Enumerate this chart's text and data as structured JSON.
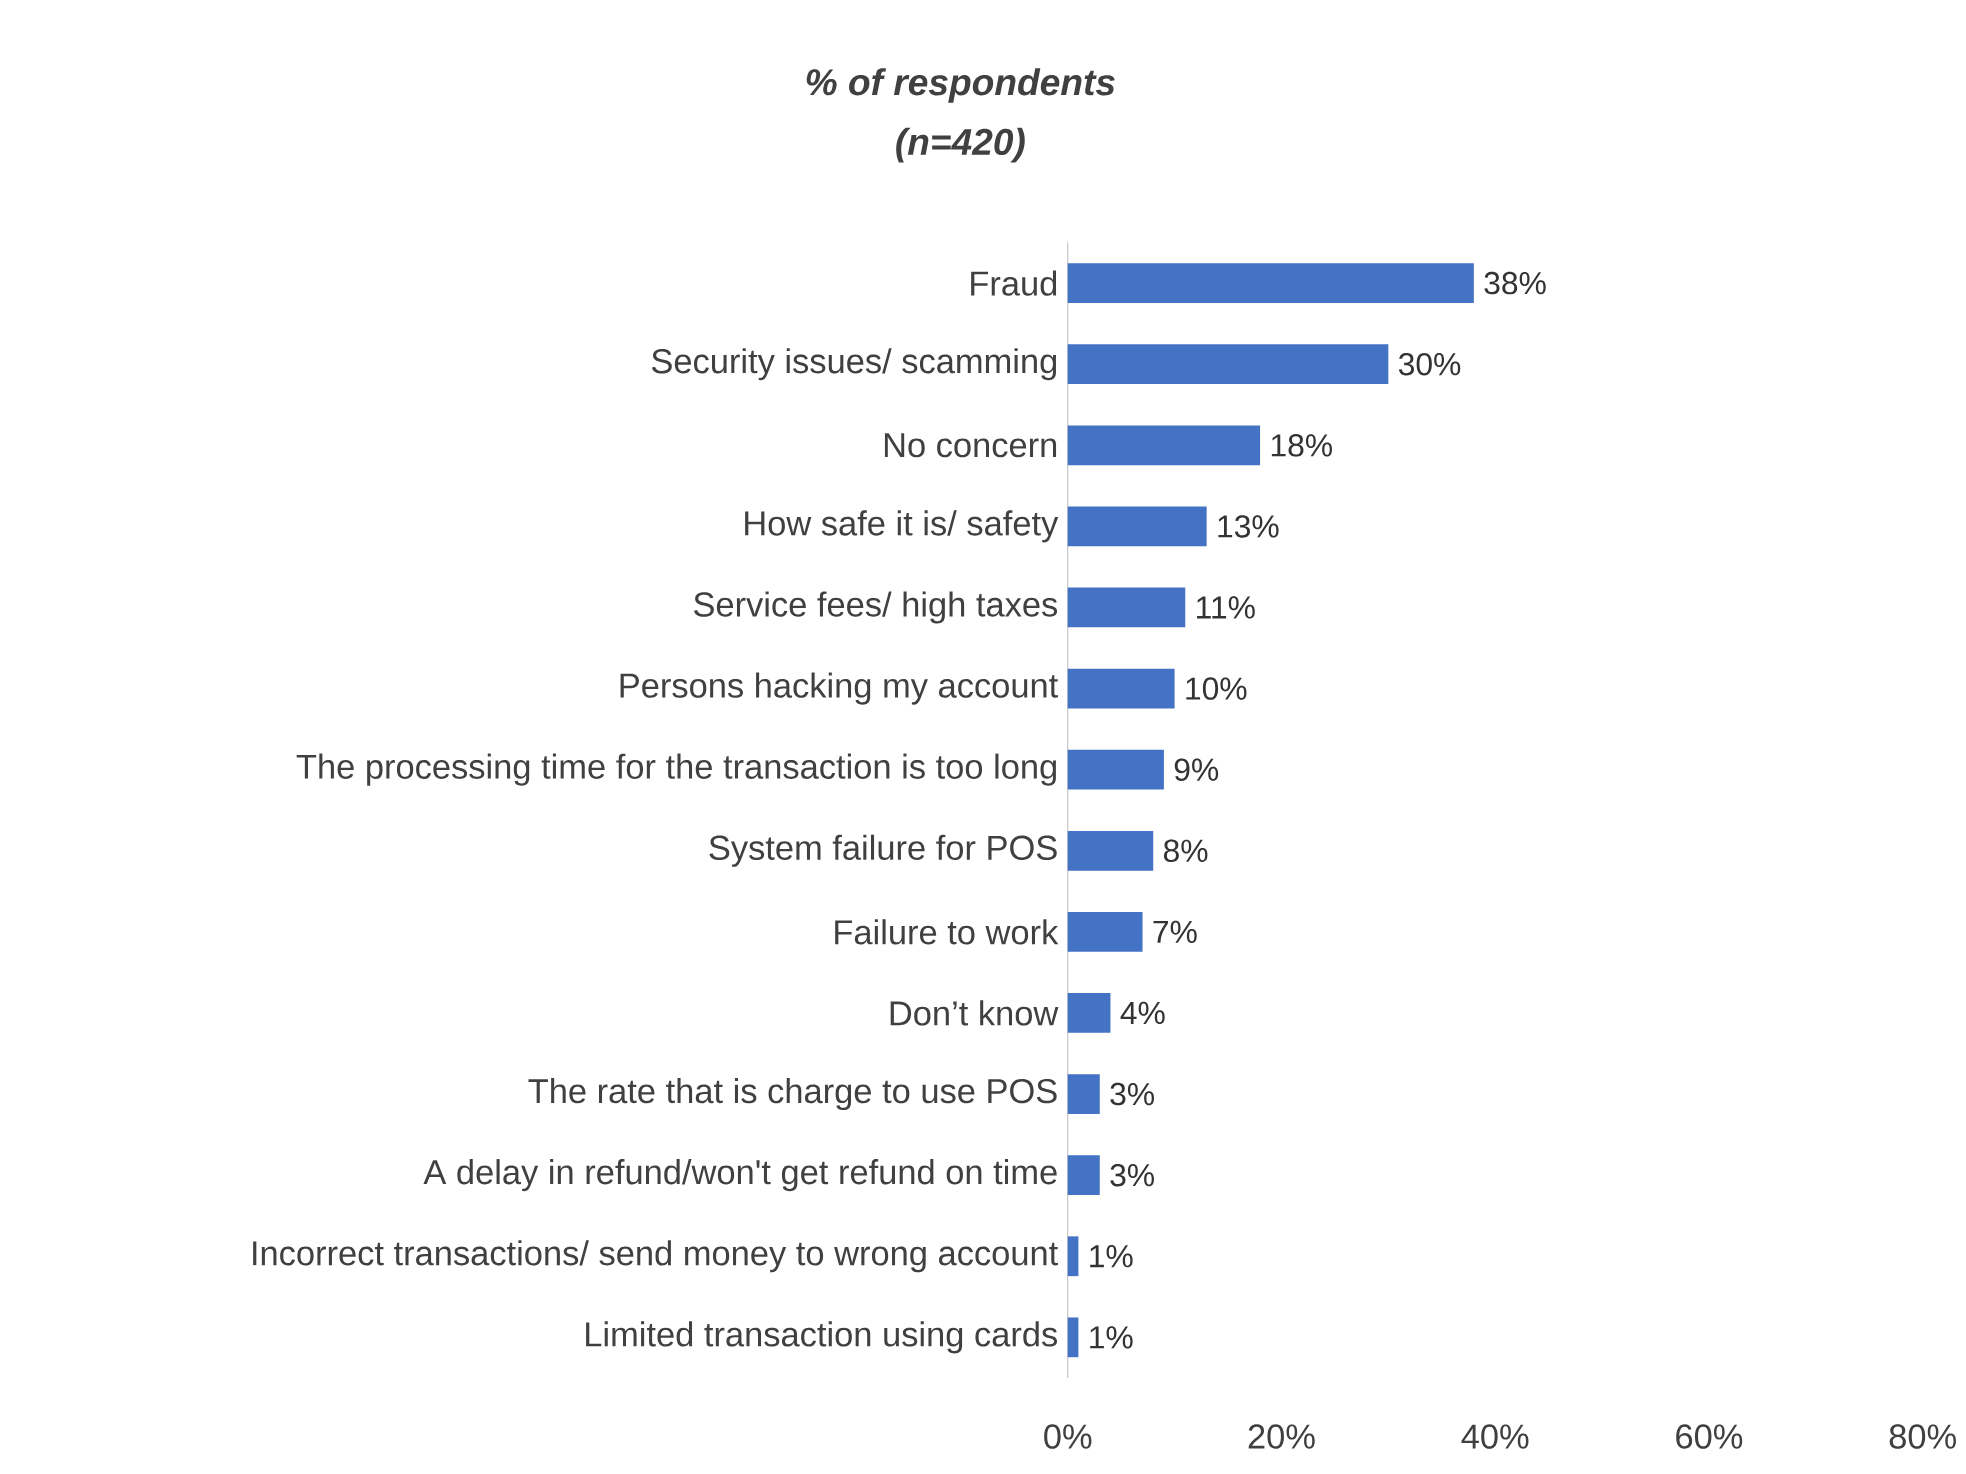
{
  "chart_data": {
    "type": "bar",
    "orientation": "horizontal",
    "title": "% of respondents",
    "subtitle": "(n=420)",
    "categories": [
      "Fraud",
      "Security issues/ scamming",
      "No concern",
      "How safe it is/ safety",
      "Service fees/ high taxes",
      "Persons hacking my account",
      "The processing time for the transaction is too long",
      "System failure for POS",
      "Failure to work",
      "Don’t know",
      "The rate that is charge to use POS",
      "A delay in refund/won't get refund on time",
      "Incorrect transactions/ send money to wrong account",
      "Limited transaction using cards"
    ],
    "values": [
      38,
      30,
      18,
      13,
      11,
      10,
      9,
      8,
      7,
      4,
      3,
      3,
      1,
      1
    ],
    "value_labels": [
      "38%",
      "30%",
      "18%",
      "13%",
      "11%",
      "10%",
      "9%",
      "8%",
      "7%",
      "4%",
      "3%",
      "3%",
      "1%",
      "1%"
    ],
    "color": "#4472c4",
    "xlim": [
      0,
      80
    ],
    "xticks": [
      {
        "value": 0,
        "label": "0%"
      },
      {
        "value": 20,
        "label": "20%"
      },
      {
        "value": 40,
        "label": "40%"
      },
      {
        "value": 60,
        "label": "60%"
      },
      {
        "value": 80,
        "label": "80%"
      }
    ],
    "grid": false
  }
}
